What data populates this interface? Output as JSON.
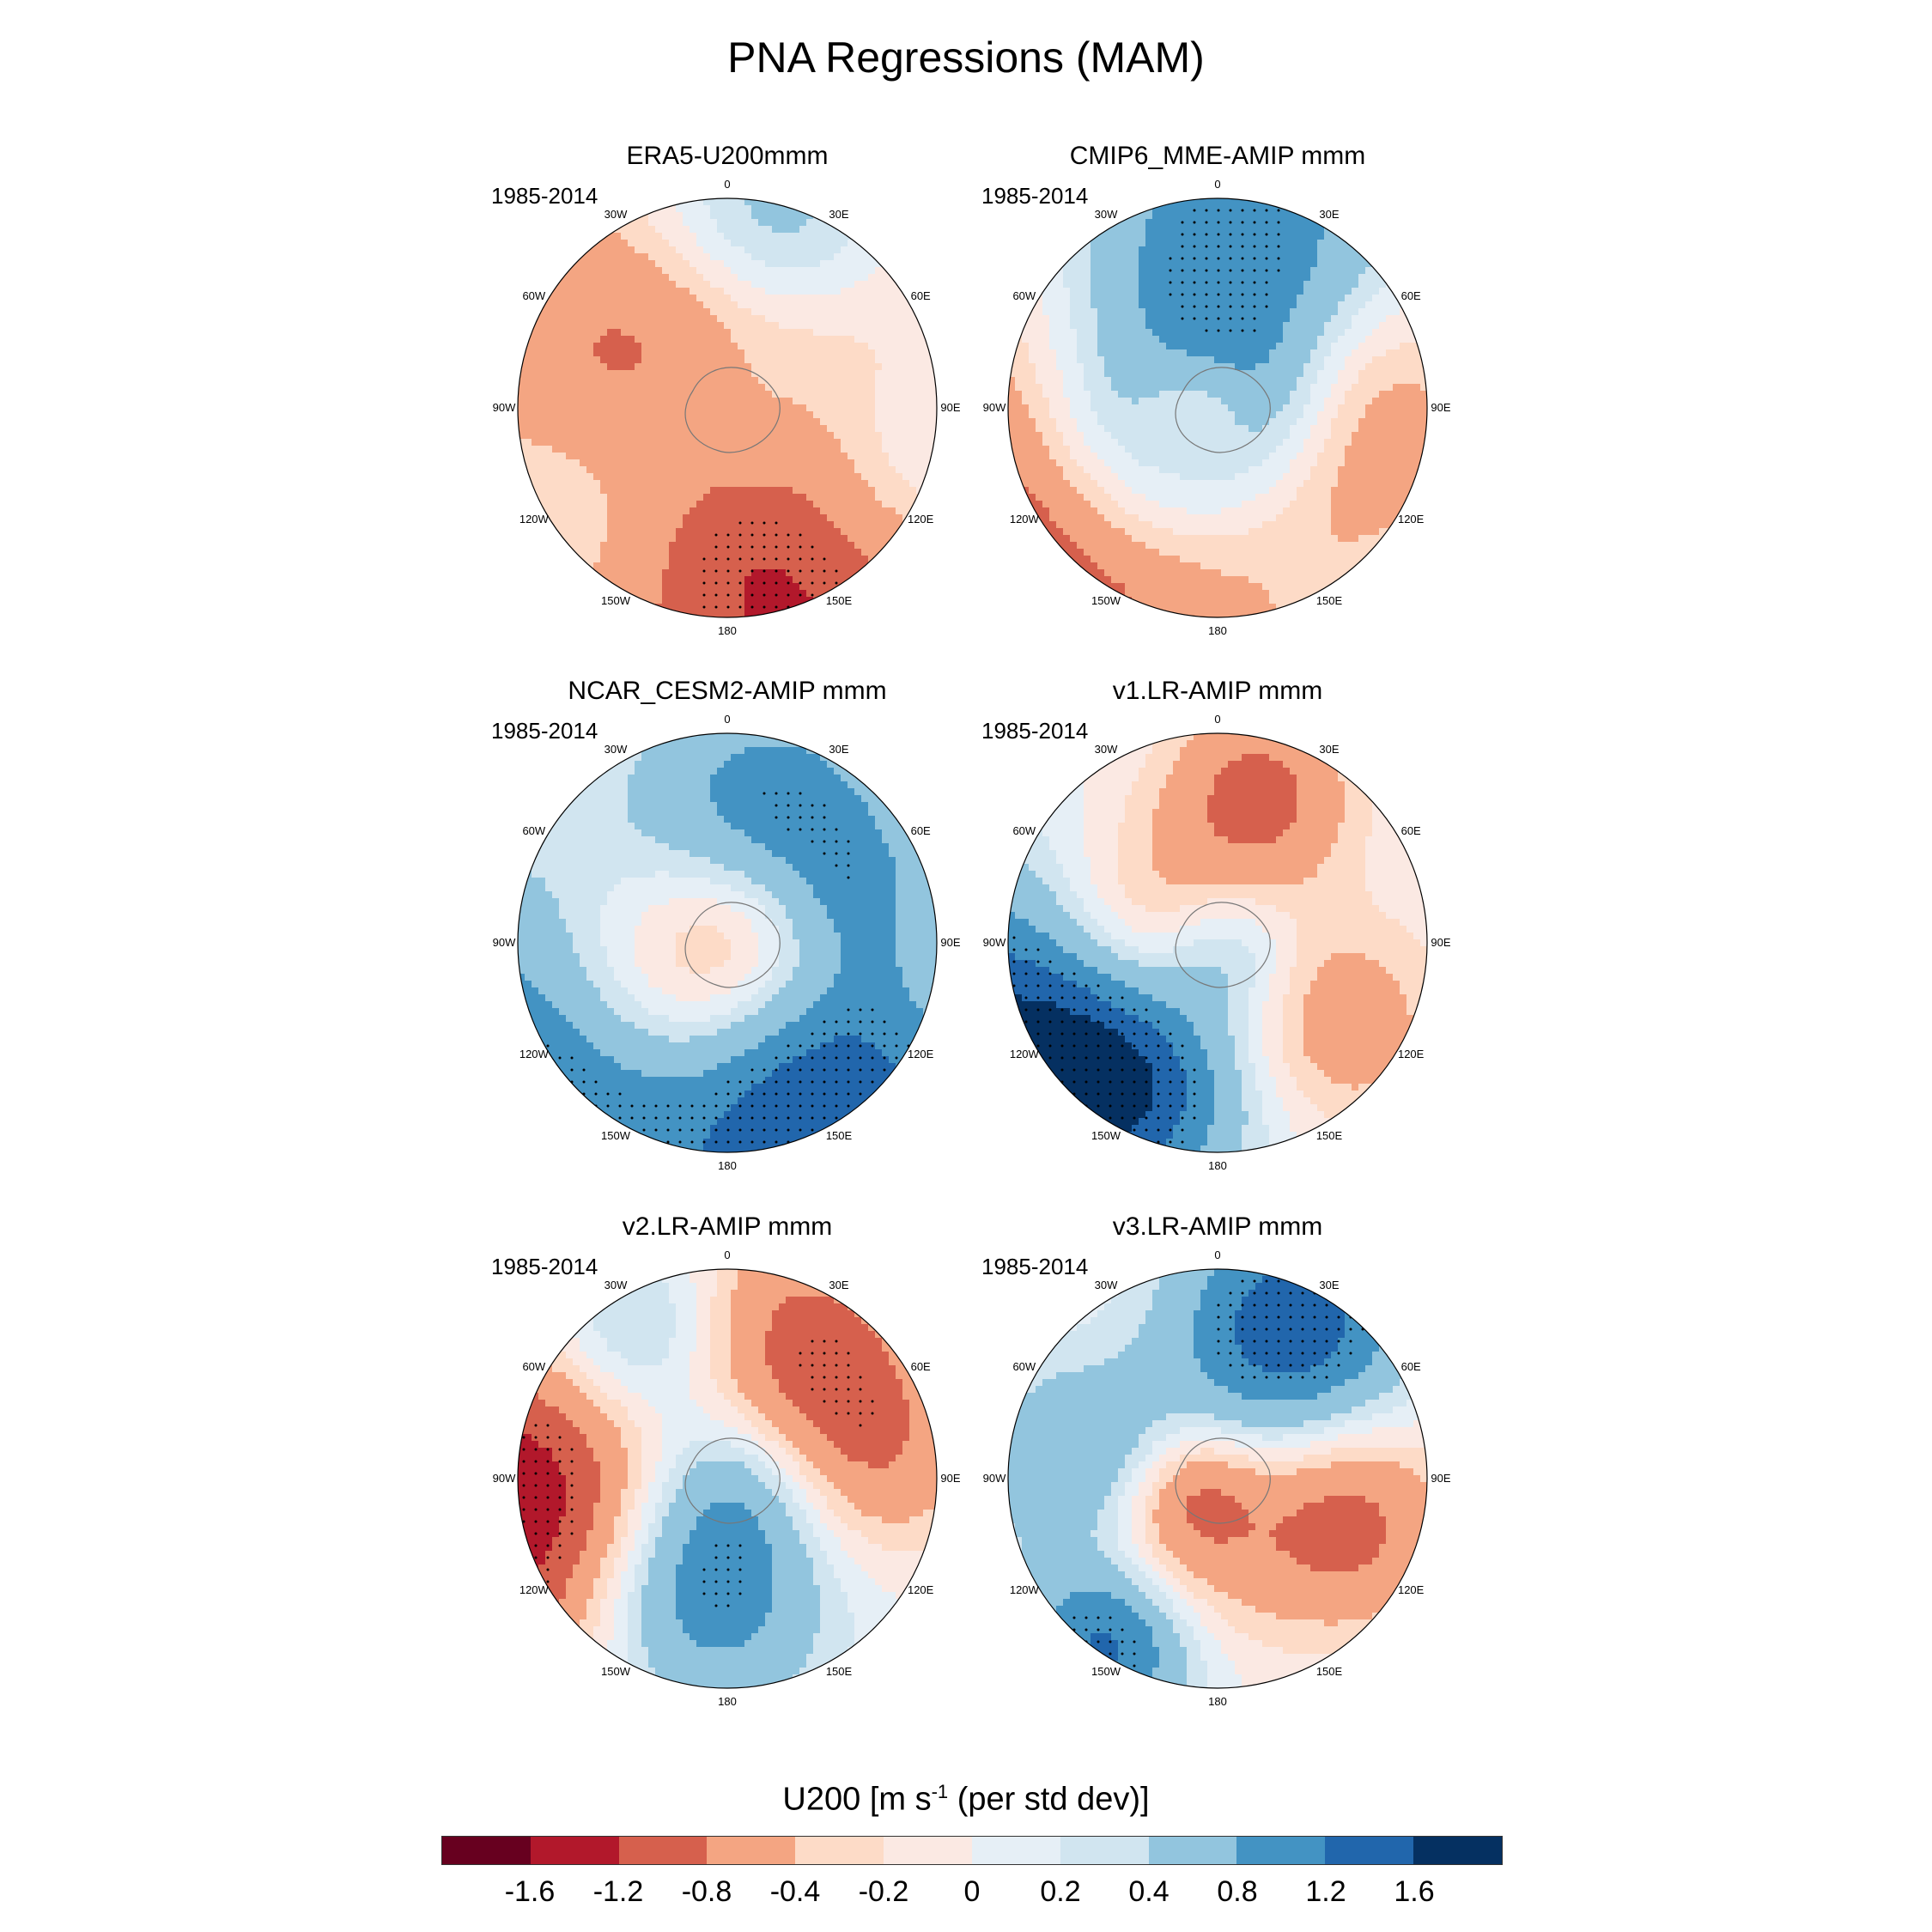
{
  "title": "PNA Regressions (MAM)",
  "panels": [
    {
      "title": "ERA5-U200mmm",
      "period": "1985-2014"
    },
    {
      "title": "CMIP6_MME-AMIP  mmm",
      "period": "1985-2014"
    },
    {
      "title": "NCAR_CESM2-AMIP  mmm",
      "period": "1985-2014"
    },
    {
      "title": "v1.LR-AMIP  mmm",
      "period": "1985-2014"
    },
    {
      "title": "v2.LR-AMIP  mmm",
      "period": "1985-2014"
    },
    {
      "title": "v3.LR-AMIP  mmm",
      "period": "1985-2014"
    }
  ],
  "lon_labels": [
    "0",
    "30E",
    "60E",
    "90E",
    "120E",
    "150E",
    "180",
    "150W",
    "120W",
    "90W",
    "60W",
    "30W"
  ],
  "colorbar": {
    "title_main": "U200 [m s",
    "title_sup": "-1",
    "title_tail": " (per std dev)]",
    "labels": [
      "-1.6",
      "-1.2",
      "-0.8",
      "-0.4",
      "-0.2",
      "0",
      "0.2",
      "0.4",
      "0.8",
      "1.2",
      "1.6"
    ],
    "colors": [
      "#67001f",
      "#b2182b",
      "#d6604d",
      "#f4a582",
      "#fddbc7",
      "#fbe9e3",
      "#e6eff6",
      "#d1e5f0",
      "#92c5de",
      "#4393c3",
      "#2166ac",
      "#053061"
    ]
  }
}
